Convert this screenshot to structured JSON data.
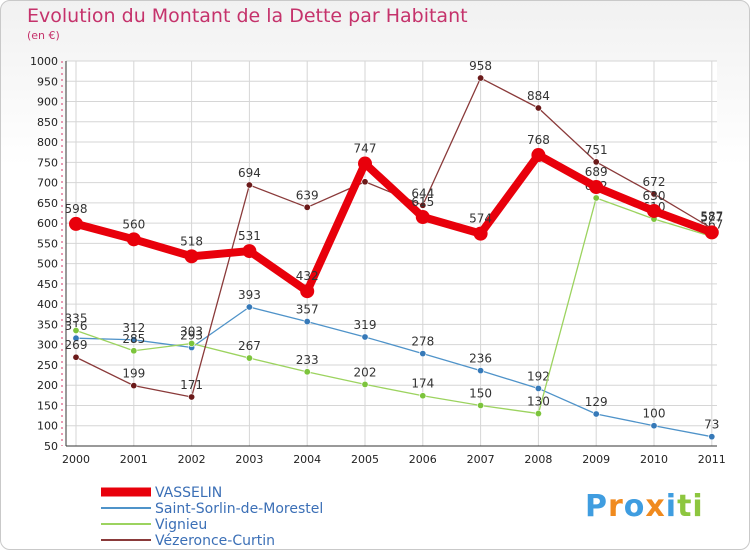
{
  "title": "Evolution du Montant de la Dette par Habitant",
  "subtitle": "(en €)",
  "brand": {
    "text": "Proxiti",
    "colors": [
      "#3f9de0",
      "#f08a1e",
      "#3f9de0",
      "#f08a1e",
      "#3f9de0",
      "#8dc63f",
      "#8dc63f"
    ]
  },
  "chart_data": {
    "type": "line",
    "categories": [
      "2000",
      "2001",
      "2002",
      "2003",
      "2004",
      "2005",
      "2006",
      "2007",
      "2008",
      "2009",
      "2010",
      "2011"
    ],
    "ylim": [
      50,
      1000
    ],
    "yticks": [
      50,
      100,
      150,
      200,
      250,
      300,
      350,
      400,
      450,
      500,
      550,
      600,
      650,
      700,
      750,
      800,
      850,
      900,
      950,
      1000
    ],
    "grid": true,
    "legend_position": "bottom-left",
    "series": [
      {
        "name": "VASSELIN",
        "color": "#e8000b",
        "thick": true,
        "values": [
          598,
          560,
          518,
          531,
          432,
          747,
          615,
          574,
          768,
          689,
          630,
          577
        ],
        "labels": [
          "598",
          "560",
          "518",
          "531",
          "432",
          "747",
          "615",
          "574",
          "768",
          "689",
          "630",
          "577"
        ]
      },
      {
        "name": "Saint-Sorlin-de-Morestel",
        "color": "#4f93c9",
        "marker": "#3679b8",
        "values": [
          316,
          312,
          293,
          393,
          357,
          319,
          278,
          236,
          192,
          129,
          100,
          73
        ],
        "labels": [
          "316",
          "312",
          "293",
          "393",
          "357",
          "319",
          "278",
          "236",
          "192",
          "129",
          "100",
          "73"
        ]
      },
      {
        "name": "Vignieu",
        "color": "#9cd35f",
        "marker": "#7cc43c",
        "values": [
          335,
          285,
          303,
          267,
          233,
          202,
          174,
          150,
          130,
          662,
          610,
          567
        ],
        "labels": [
          "335",
          "285",
          "303",
          "267",
          "233",
          "202",
          "174",
          "150",
          "130",
          "662",
          "610",
          "567"
        ]
      },
      {
        "name": "Vézeronce-Curtin",
        "color": "#8a3a3a",
        "marker": "#6b1a1a",
        "values": [
          269,
          199,
          171,
          694,
          639,
          702,
          644,
          958,
          884,
          751,
          672,
          587
        ],
        "labels": [
          "269",
          "199",
          "171",
          "694",
          "639",
          "",
          "644",
          "958",
          "884",
          "751",
          "672",
          "587"
        ]
      }
    ]
  }
}
